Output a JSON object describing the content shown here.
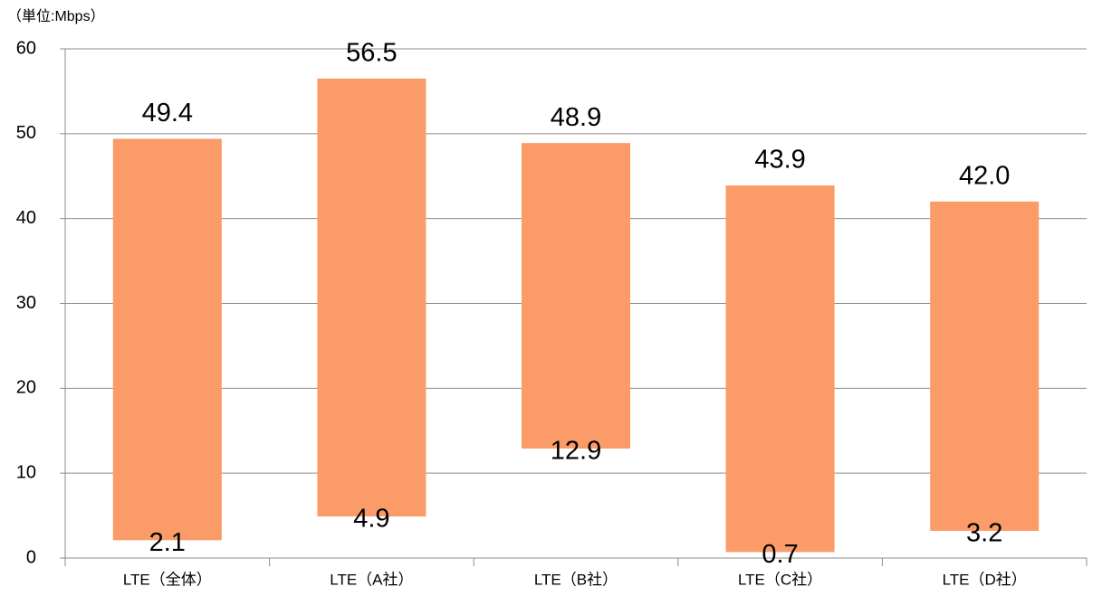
{
  "chart_data": {
    "type": "range_bar",
    "y_label": "（単位:Mbps）",
    "categories": [
      "LTE（全体）",
      "LTE（A社）",
      "LTE（B社）",
      "LTE（C社）",
      "LTE（D社）"
    ],
    "low": [
      2.1,
      4.9,
      12.9,
      0.7,
      3.2
    ],
    "high": [
      49.4,
      56.5,
      48.9,
      43.9,
      42
    ],
    "high_labels": [
      "49.4",
      "56.5",
      "48.9",
      "43.9",
      "42.0"
    ],
    "color": "#fa9b68",
    "ylim": [
      0,
      60
    ],
    "yticks": [
      0,
      10,
      20,
      30,
      40,
      50,
      60
    ],
    "grid": true
  }
}
